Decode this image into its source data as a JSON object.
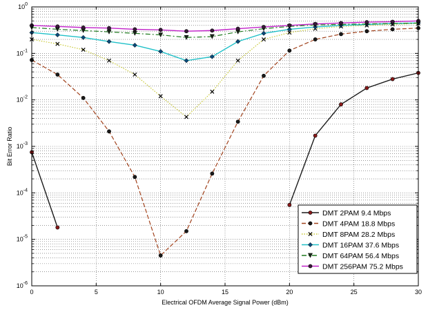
{
  "chart_data": {
    "type": "line",
    "title": "",
    "xlabel": "Electrical OFDM Average Signal Power (dBm)",
    "ylabel": "Bit Error Ratio",
    "xlim": [
      0,
      30
    ],
    "ylim": [
      1e-06,
      1
    ],
    "yscale": "log",
    "x_ticks": [
      0,
      5,
      10,
      15,
      20,
      25,
      30
    ],
    "y_tick_exponents": [
      -6,
      -5,
      -4,
      -3,
      -2,
      -1,
      0
    ],
    "grid": true,
    "legend_position": "bottom-right",
    "series": [
      {
        "name": "DMT 2PAM 9.4 Mbps",
        "color": "#1a1a1a",
        "marker_fill": "#8b1a1a",
        "linestyle": "solid",
        "marker": "circle",
        "segments": [
          [
            [
              0,
              0.00075
            ],
            [
              2,
              1.8e-05
            ]
          ],
          [
            [
              20,
              5.5e-05
            ],
            [
              22,
              0.0017
            ],
            [
              24,
              0.008
            ],
            [
              26,
              0.018
            ],
            [
              28,
              0.028
            ],
            [
              30,
              0.038
            ]
          ]
        ]
      },
      {
        "name": "DMT 4PAM 18.8 Mbps",
        "color": "#a0401a",
        "marker_fill": "#1a1a1a",
        "linestyle": "dashed",
        "marker": "circle",
        "segments": [
          [
            [
              0,
              0.072
            ],
            [
              2,
              0.035
            ],
            [
              4,
              0.011
            ],
            [
              6,
              0.0021
            ],
            [
              8,
              0.00022
            ],
            [
              10,
              4.5e-06
            ],
            [
              12,
              1.5e-05
            ],
            [
              14,
              0.00026
            ],
            [
              16,
              0.0034
            ],
            [
              18,
              0.033
            ],
            [
              20,
              0.115
            ],
            [
              22,
              0.2
            ],
            [
              24,
              0.26
            ],
            [
              26,
              0.3
            ],
            [
              28,
              0.33
            ],
            [
              30,
              0.35
            ]
          ]
        ]
      },
      {
        "name": "DMT 8PAM 28.2 Mbps",
        "color": "#c8c832",
        "marker_fill": "#000000",
        "linestyle": "dotted",
        "marker": "x",
        "segments": [
          [
            [
              0,
              0.2
            ],
            [
              2,
              0.16
            ],
            [
              4,
              0.12
            ],
            [
              6,
              0.07
            ],
            [
              8,
              0.035
            ],
            [
              10,
              0.012
            ],
            [
              12,
              0.0043
            ],
            [
              14,
              0.015
            ],
            [
              16,
              0.07
            ],
            [
              18,
              0.2
            ],
            [
              20,
              0.28
            ],
            [
              22,
              0.34
            ],
            [
              24,
              0.38
            ],
            [
              26,
              0.4
            ],
            [
              28,
              0.42
            ],
            [
              30,
              0.44
            ]
          ]
        ]
      },
      {
        "name": "DMT 16PAM 37.6 Mbps",
        "color": "#1fc0c8",
        "marker_fill": "#0a4a7a",
        "linestyle": "solid",
        "marker": "diamond",
        "segments": [
          [
            [
              0,
              0.28
            ],
            [
              2,
              0.25
            ],
            [
              4,
              0.22
            ],
            [
              6,
              0.18
            ],
            [
              8,
              0.15
            ],
            [
              10,
              0.11
            ],
            [
              12,
              0.07
            ],
            [
              14,
              0.085
            ],
            [
              16,
              0.18
            ],
            [
              18,
              0.27
            ],
            [
              20,
              0.33
            ],
            [
              22,
              0.37
            ],
            [
              24,
              0.4
            ],
            [
              26,
              0.42
            ],
            [
              28,
              0.44
            ],
            [
              30,
              0.45
            ]
          ]
        ]
      },
      {
        "name": "DMT 64PAM 56.4 Mbps",
        "color": "#1f7a1f",
        "marker_fill": "#1a2a1a",
        "linestyle": "dashdot",
        "marker": "triangle-down",
        "segments": [
          [
            [
              0,
              0.36
            ],
            [
              2,
              0.33
            ],
            [
              4,
              0.31
            ],
            [
              6,
              0.29
            ],
            [
              8,
              0.27
            ],
            [
              10,
              0.25
            ],
            [
              12,
              0.22
            ],
            [
              14,
              0.23
            ],
            [
              16,
              0.29
            ],
            [
              18,
              0.34
            ],
            [
              20,
              0.38
            ],
            [
              22,
              0.41
            ],
            [
              24,
              0.42
            ],
            [
              26,
              0.43
            ],
            [
              28,
              0.44
            ],
            [
              30,
              0.45
            ]
          ]
        ]
      },
      {
        "name": "DMT 256PAM 75.2 Mbps",
        "color": "#c020c8",
        "marker_fill": "#3a1a3a",
        "linestyle": "solid",
        "marker": "circle",
        "segments": [
          [
            [
              0,
              0.4
            ],
            [
              2,
              0.38
            ],
            [
              4,
              0.36
            ],
            [
              6,
              0.35
            ],
            [
              8,
              0.33
            ],
            [
              10,
              0.32
            ],
            [
              12,
              0.3
            ],
            [
              14,
              0.31
            ],
            [
              16,
              0.34
            ],
            [
              18,
              0.37
            ],
            [
              20,
              0.4
            ],
            [
              22,
              0.43
            ],
            [
              24,
              0.45
            ],
            [
              26,
              0.47
            ],
            [
              28,
              0.48
            ],
            [
              30,
              0.5
            ]
          ]
        ]
      }
    ]
  }
}
